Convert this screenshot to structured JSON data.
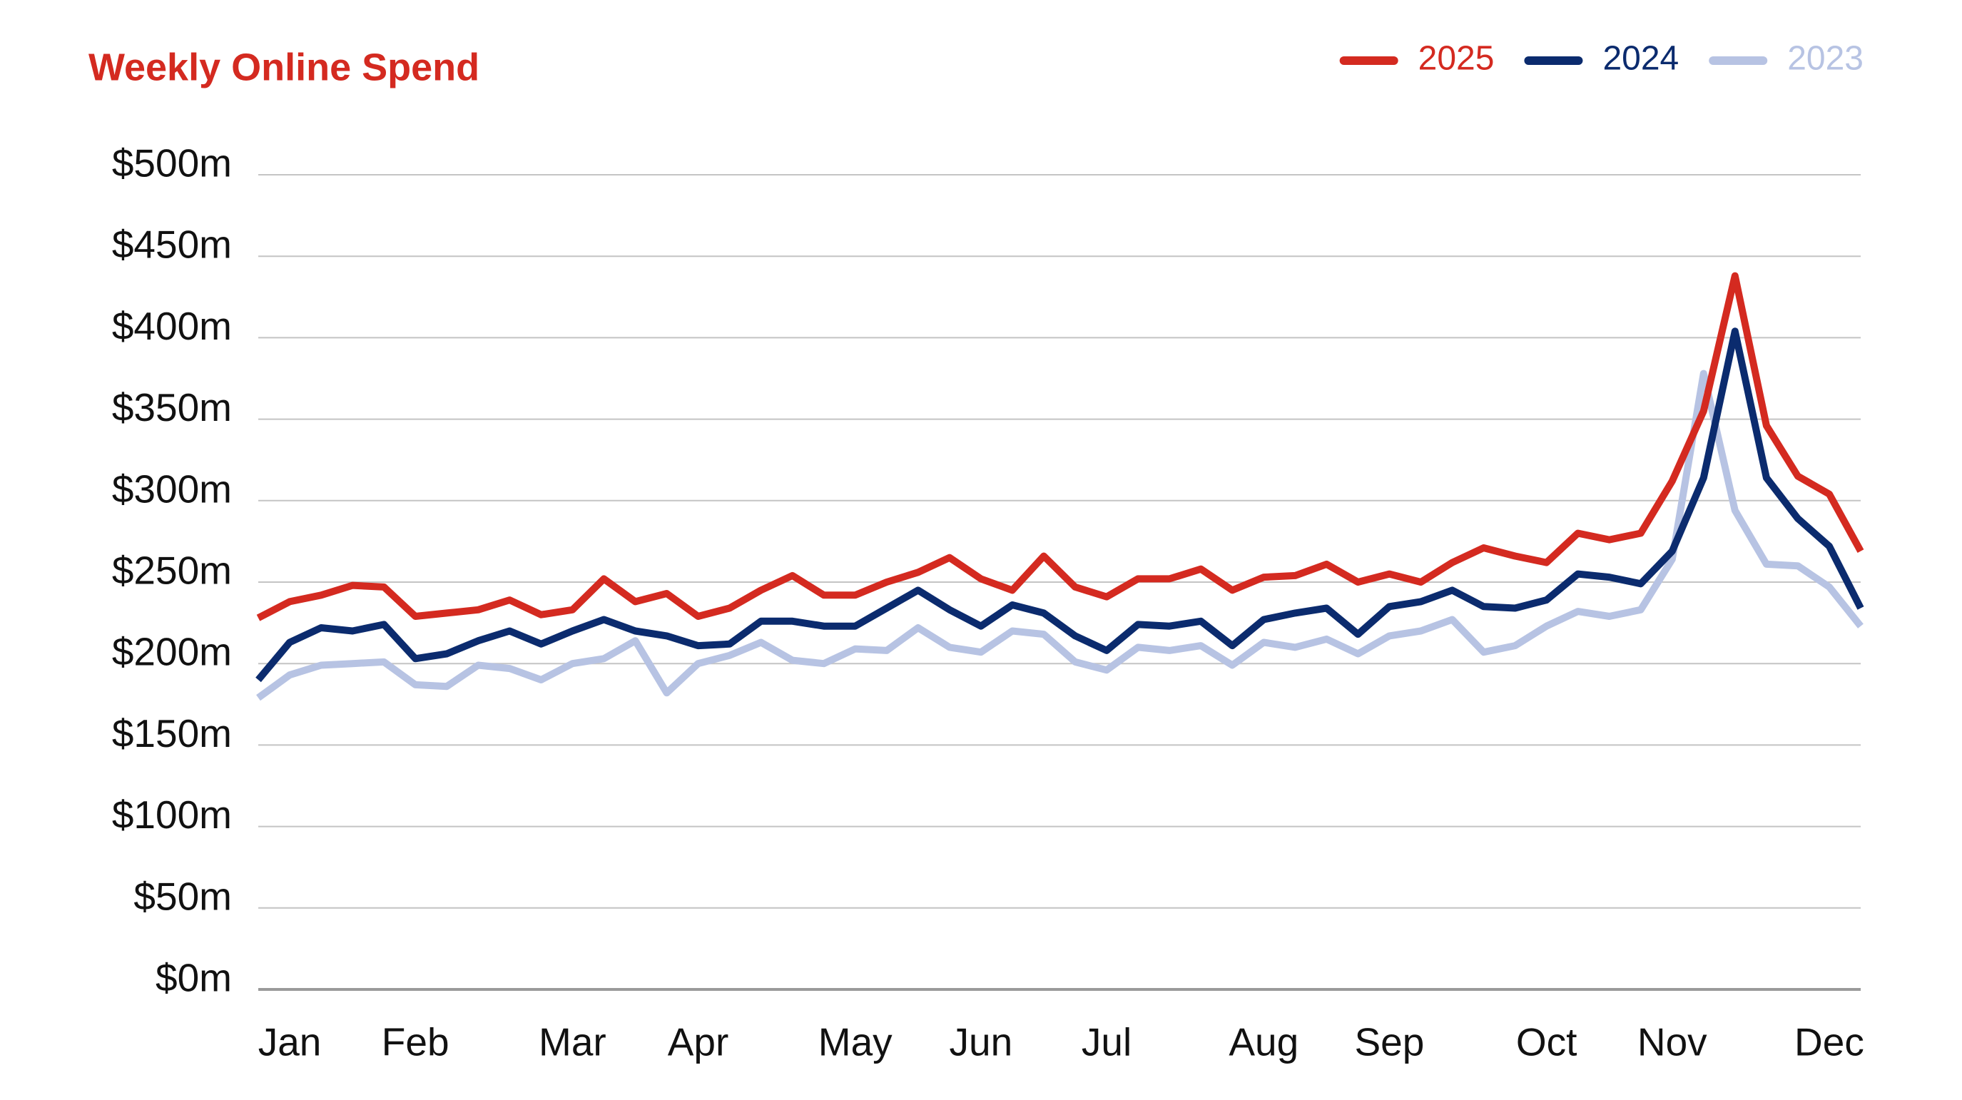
{
  "chart_data": {
    "type": "line",
    "title": "Weekly Online Spend",
    "legend": "top-right",
    "grid": true,
    "categories": [
      null,
      "Jan",
      null,
      null,
      null,
      "Feb",
      null,
      null,
      null,
      null,
      "Mar",
      null,
      null,
      null,
      "Apr",
      null,
      null,
      null,
      null,
      "May",
      null,
      null,
      null,
      "Jun",
      null,
      null,
      null,
      "Jul",
      null,
      null,
      null,
      null,
      "Aug",
      null,
      null,
      null,
      "Sep",
      null,
      null,
      null,
      null,
      "Oct",
      null,
      null,
      null,
      "Nov",
      null,
      null,
      null,
      null,
      "Dec",
      null
    ],
    "ylim": [
      0,
      500
    ],
    "yticks": [
      {
        "value": 0,
        "label": "$0m"
      },
      {
        "value": 50,
        "label": "$50m"
      },
      {
        "value": 100,
        "label": "$100m"
      },
      {
        "value": 150,
        "label": "$150m"
      },
      {
        "value": 200,
        "label": "$200m"
      },
      {
        "value": 250,
        "label": "$250m"
      },
      {
        "value": 300,
        "label": "$300m"
      },
      {
        "value": 350,
        "label": "$350m"
      },
      {
        "value": 400,
        "label": "$400m"
      },
      {
        "value": 450,
        "label": "$450m"
      },
      {
        "value": 500,
        "label": "$500m"
      }
    ],
    "series": [
      {
        "name": "2025",
        "color": "#d42a20",
        "values": [
          228,
          238,
          242,
          248,
          247,
          229,
          231,
          233,
          239,
          230,
          233,
          252,
          238,
          243,
          229,
          234,
          245,
          254,
          242,
          242,
          250,
          256,
          265,
          252,
          245,
          266,
          247,
          241,
          252,
          252,
          258,
          245,
          253,
          254,
          261,
          250,
          255,
          250,
          262,
          271,
          266,
          262,
          280,
          276,
          280,
          312,
          355,
          438,
          346,
          315,
          304,
          269
        ]
      },
      {
        "name": "2024",
        "color": "#0b2b6e",
        "values": [
          190,
          213,
          222,
          220,
          224,
          203,
          206,
          214,
          220,
          212,
          220,
          227,
          220,
          217,
          211,
          212,
          226,
          226,
          223,
          223,
          234,
          245,
          233,
          223,
          236,
          231,
          217,
          208,
          224,
          223,
          226,
          211,
          227,
          231,
          234,
          218,
          235,
          238,
          245,
          235,
          234,
          239,
          255,
          253,
          249,
          269,
          314,
          404,
          314,
          289,
          272,
          234
        ]
      },
      {
        "name": "2023",
        "color": "#b7c3e3",
        "values": [
          179,
          193,
          199,
          200,
          201,
          187,
          186,
          199,
          197,
          190,
          200,
          203,
          214,
          182,
          200,
          205,
          213,
          202,
          200,
          209,
          208,
          222,
          210,
          207,
          220,
          218,
          201,
          196,
          210,
          208,
          211,
          199,
          213,
          210,
          215,
          206,
          217,
          220,
          227,
          207,
          211,
          223,
          232,
          229,
          233,
          264,
          378,
          294,
          261,
          260,
          247,
          223
        ]
      }
    ]
  }
}
